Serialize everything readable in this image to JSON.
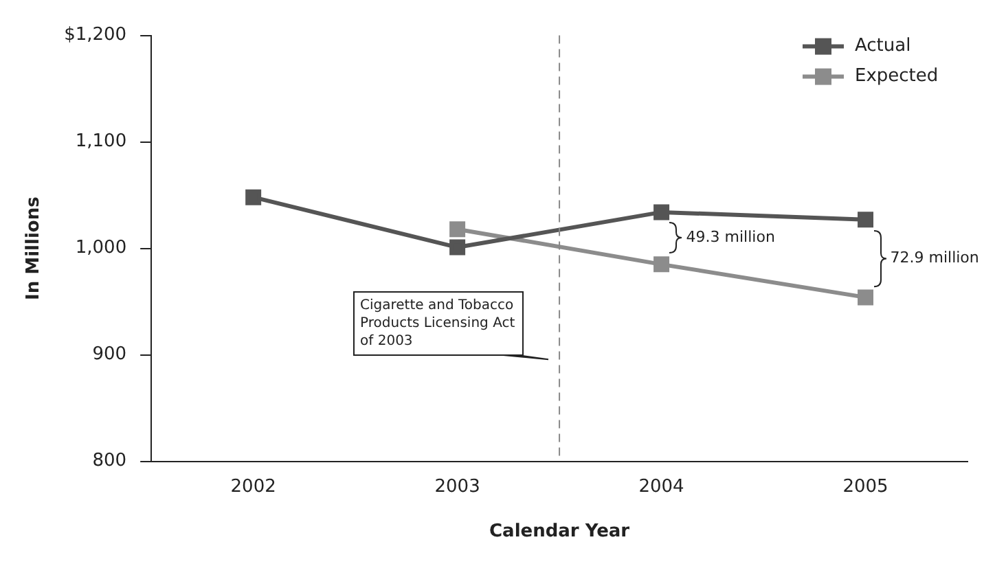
{
  "chart_data": {
    "type": "line",
    "xlabel": "Calendar Year",
    "ylabel": "In Millions",
    "series": [
      {
        "name": "Actual",
        "color": "#555555",
        "x": [
          2002,
          2003,
          2004,
          2005
        ],
        "values": [
          1048,
          1001,
          1034,
          1027
        ]
      },
      {
        "name": "Expected",
        "color": "#8c8c8c",
        "x": [
          2003,
          2004,
          2005
        ],
        "values": [
          1018,
          985,
          954
        ]
      }
    ],
    "xlim": [
      2001.5,
      2005.5
    ],
    "xticks": [
      2002,
      2003,
      2004,
      2005
    ],
    "ylim": [
      800,
      1200
    ],
    "yticks": [
      800,
      900,
      {
        "value": 1000,
        "label": "1,000"
      },
      {
        "value": 1100,
        "label": "1,100"
      },
      {
        "value": 1200,
        "label": "$1,200"
      }
    ],
    "ref_lines": [
      {
        "axis": "x",
        "value": 2003.5,
        "line_style": "dashed",
        "color": "#888888"
      }
    ],
    "annotations": [
      "Cigarette and Tobacco Products Licensing Act of 2003",
      "49.3 million",
      "72.9 million"
    ],
    "marker": "square",
    "line_style": "solid",
    "grid": false,
    "legend": "top right"
  }
}
